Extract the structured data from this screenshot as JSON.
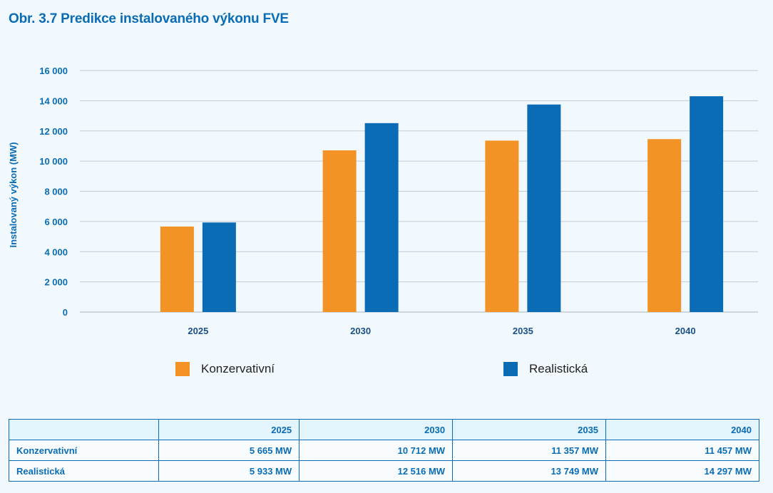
{
  "title": "Obr. 3.7 Predikce instalovaného výkonu FVE",
  "chart_data": {
    "type": "bar",
    "categories": [
      "2025",
      "2030",
      "2035",
      "2040"
    ],
    "series": [
      {
        "name": "Konzervativní",
        "values": [
          5665,
          10712,
          11357,
          11457
        ],
        "color": "#f39325"
      },
      {
        "name": "Realistická",
        "values": [
          5933,
          12516,
          13749,
          14297
        ],
        "color": "#0a6cb5"
      }
    ],
    "ylabel": "Instalovaný výkon (MW)",
    "xlabel": "",
    "ylim": [
      0,
      16000
    ],
    "yticks": [
      0,
      2000,
      4000,
      6000,
      8000,
      10000,
      12000,
      14000,
      16000
    ],
    "ytick_labels": [
      "0",
      "2 000",
      "4 000",
      "6 000",
      "8 000",
      "10 000",
      "12 000",
      "14 000",
      "16 000"
    ],
    "grid": true,
    "legend_position": "bottom"
  },
  "legend": [
    {
      "label": "Konzervativní",
      "color": "#f39325"
    },
    {
      "label": "Realistická",
      "color": "#0a6cb5"
    }
  ],
  "table": {
    "header": [
      "",
      "2025",
      "2030",
      "2035",
      "2040"
    ],
    "rows": [
      {
        "name": "Konzervativní",
        "cells": [
          "5 665 MW",
          "10 712 MW",
          "11 357 MW",
          "11 457 MW"
        ]
      },
      {
        "name": "Realistická",
        "cells": [
          "5 933 MW",
          "12 516 MW",
          "13 749 MW",
          "14 297 MW"
        ]
      }
    ]
  }
}
